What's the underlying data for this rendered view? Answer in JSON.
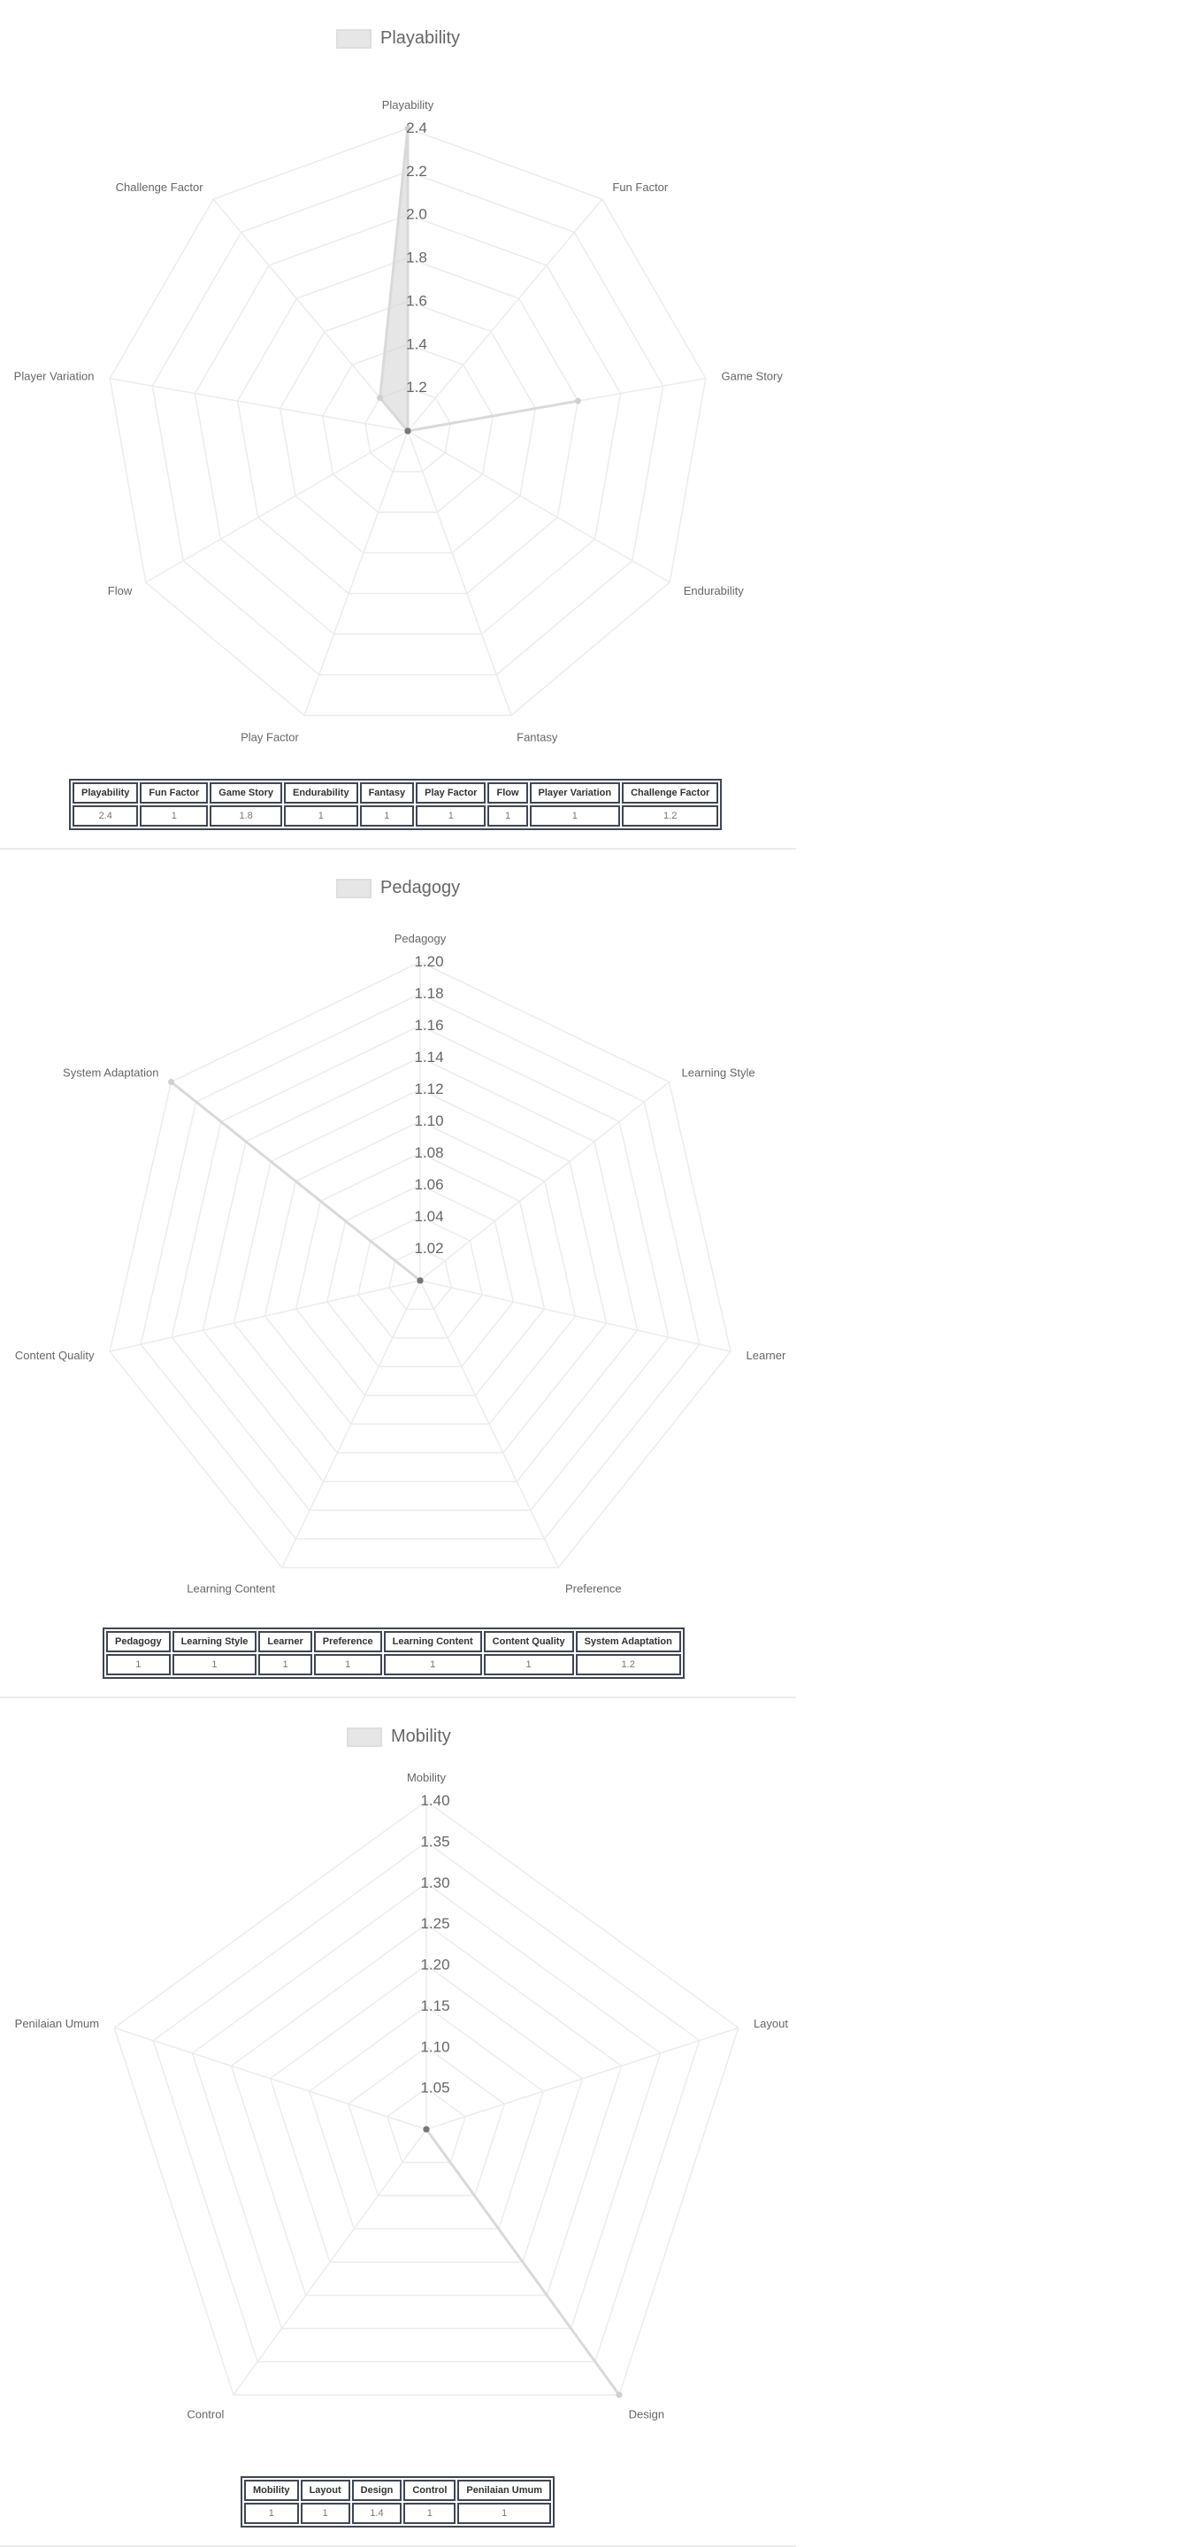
{
  "chart_data": [
    {
      "type": "radar",
      "title": "Playability",
      "legend": "top",
      "grid": true,
      "rlim": [
        1.0,
        2.4
      ],
      "ticks": [
        "1.2",
        "1.4",
        "1.6",
        "1.8",
        "2.0",
        "2.2",
        "2.4"
      ],
      "tick_values": [
        1.2,
        1.4,
        1.6,
        1.8,
        2.0,
        2.2,
        2.4
      ],
      "categories": [
        "Playability",
        "Fun Factor",
        "Game Story",
        "Endurability",
        "Fantasy",
        "Play Factor",
        "Flow",
        "Player Variation",
        "Challenge Factor"
      ],
      "series": [
        {
          "name": "Playability",
          "values": [
            2.4,
            1,
            1.8,
            1,
            1,
            1,
            1,
            1,
            1.2
          ]
        }
      ],
      "table": {
        "headers": [
          "Playability",
          "Fun Factor",
          "Game Story",
          "Endurability",
          "Fantasy",
          "Play Factor",
          "Flow",
          "Player Variation",
          "Challenge Factor"
        ],
        "values": [
          "2.4",
          "1",
          "1.8",
          "1",
          "1",
          "1",
          "1",
          "1",
          "1.2"
        ]
      }
    },
    {
      "type": "radar",
      "title": "Pedagogy",
      "legend": "top",
      "grid": true,
      "rlim": [
        1.0,
        1.2
      ],
      "ticks": [
        "1.02",
        "1.04",
        "1.06",
        "1.08",
        "1.10",
        "1.12",
        "1.14",
        "1.16",
        "1.18",
        "1.20"
      ],
      "tick_values": [
        1.02,
        1.04,
        1.06,
        1.08,
        1.1,
        1.12,
        1.14,
        1.16,
        1.18,
        1.2
      ],
      "categories": [
        "Pedagogy",
        "Learning Style",
        "Learner",
        "Preference",
        "Learning Content",
        "Content Quality",
        "System Adaptation"
      ],
      "series": [
        {
          "name": "Pedagogy",
          "values": [
            1,
            1,
            1,
            1,
            1,
            1,
            1.2
          ]
        }
      ],
      "table": {
        "headers": [
          "Pedagogy",
          "Learning Style",
          "Learner",
          "Preference",
          "Learning Content",
          "Content Quality",
          "System Adaptation"
        ],
        "values": [
          "1",
          "1",
          "1",
          "1",
          "1",
          "1",
          "1.2"
        ]
      }
    },
    {
      "type": "radar",
      "title": "Mobility",
      "legend": "top",
      "grid": true,
      "rlim": [
        1.0,
        1.4
      ],
      "ticks": [
        "1.05",
        "1.10",
        "1.15",
        "1.20",
        "1.25",
        "1.30",
        "1.35",
        "1.40"
      ],
      "tick_values": [
        1.05,
        1.1,
        1.15,
        1.2,
        1.25,
        1.3,
        1.35,
        1.4
      ],
      "categories": [
        "Mobility",
        "Layout",
        "Design",
        "Control",
        "Penilaian Umum"
      ],
      "series": [
        {
          "name": "Mobility",
          "values": [
            1,
            1,
            1.4,
            1,
            1
          ]
        }
      ],
      "table": {
        "headers": [
          "Mobility",
          "Layout",
          "Design",
          "Control",
          "Penilaian Umum"
        ],
        "values": [
          "1",
          "1",
          "1.4",
          "1",
          "1"
        ]
      }
    }
  ]
}
